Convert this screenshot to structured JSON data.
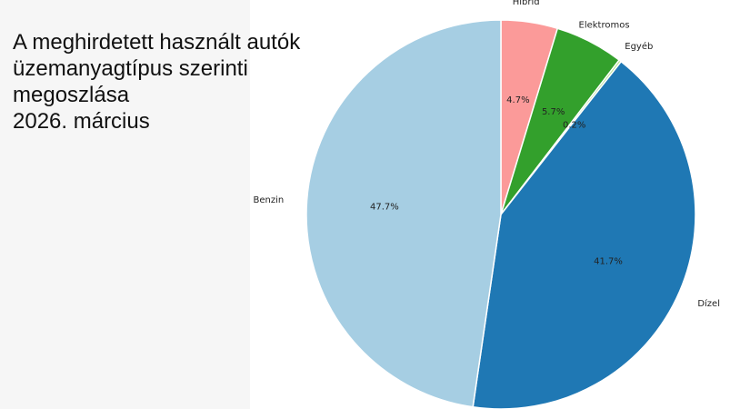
{
  "title_lines": [
    "A meghirdetett használt autók",
    "üzemanyagtípus szerinti",
    "megoszlása",
    "2026. március"
  ],
  "chart_data": {
    "type": "pie",
    "categories": [
      "Hibrid",
      "Elektromos",
      "Egyéb",
      "Dízel",
      "Benzin"
    ],
    "values": [
      4.7,
      5.7,
      0.2,
      41.7,
      47.7
    ],
    "value_labels": [
      "4.7%",
      "5.7%",
      "0.2%",
      "41.7%",
      "47.7%"
    ],
    "colors": [
      "#fb9a99",
      "#33a02c",
      "#b2df8a",
      "#1f78b4",
      "#a6cee3"
    ],
    "start": "12 o'clock",
    "direction": "clockwise"
  }
}
